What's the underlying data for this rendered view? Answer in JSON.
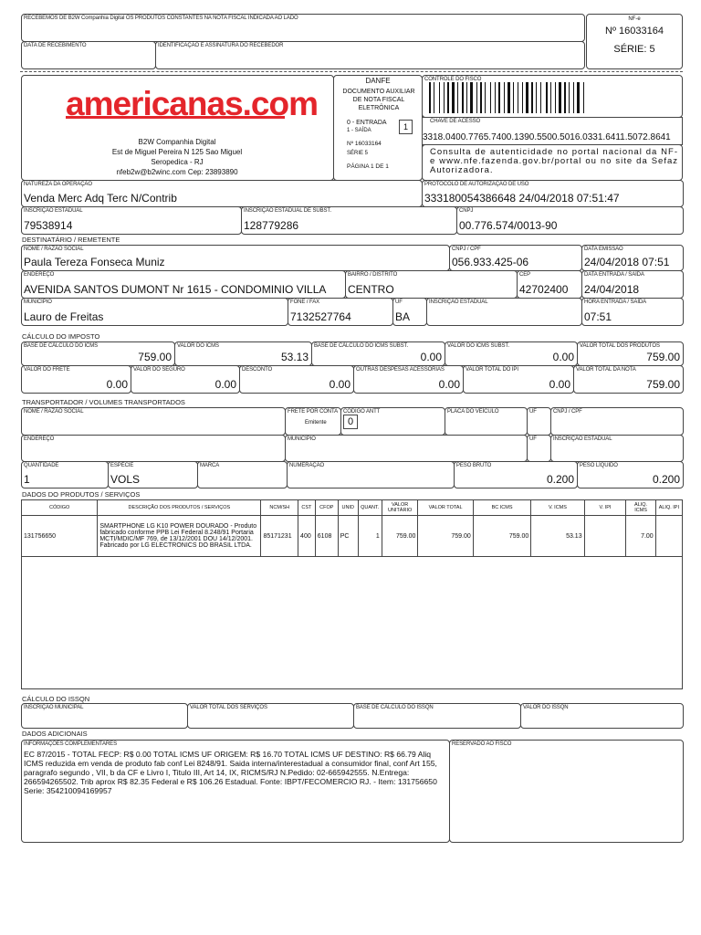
{
  "receipt": {
    "statement": "RECEBEMOS DE B2W Companhia Digital OS PRODUTOS CONSTANTES NA NOTA FISCAL INDICADA AO LADO",
    "date_label": "DATA DE RECEBIMENTO",
    "signature_label": "IDENTIFICAÇÃO E ASSINATURA DO RECEBEDOR",
    "nfe_label": "NF-e",
    "number": "Nº 16033164",
    "serie": "SÉRIE: 5"
  },
  "emitter": {
    "logo": "americanas.com",
    "logo_color": "#e4252b",
    "name": "B2W Companhia Digital",
    "address": "Est de Miguel Pereira N 125  Sao Miguel",
    "city": "Seropedica - RJ",
    "contact": "nfeb2w@b2winc.com Cep: 23893890"
  },
  "danfe": {
    "title": "DANFE",
    "subtitle": "DOCUMENTO AUXILIAR DE NOTA FISCAL ELETRÔNICA",
    "entrada": "0 - ENTRADA",
    "saida": "1 - SAÍDA",
    "type_value": "1",
    "number": "Nº 16033164",
    "serie": "SÉRIE 5",
    "page": "PÁGINA 1 DE 1"
  },
  "fisco": {
    "control_label": "CONTROLE DO FISCO",
    "key_label": "CHAVE DE ACESSO",
    "key": "3318.0400.7765.7400.1390.5500.5016.0331.6411.5072.8641",
    "consult": "Consulta de autenticidade no portal nacional da NF-e www.nfe.fazenda.gov.br/portal ou no site da Sefaz Autorizadora."
  },
  "fields": {
    "natureza": {
      "label": "NATUREZA DA OPERAÇÃO",
      "value": "Venda Merc Adq Terc N/Contrib"
    },
    "protocolo": {
      "label": "PROTOCOLO DE AUTORIZAÇÃO DE USO",
      "value": "333180054386648 24/04/2018 07:51:47"
    },
    "ie": {
      "label": "INSCRIÇÃO ESTADUAL",
      "value": "79538914"
    },
    "ie_subst": {
      "label": "INSCRIÇÃO ESTADUAL DE SUBST.",
      "value": "128779286"
    },
    "cnpj": {
      "label": "CNPJ",
      "value": "00.776.574/0013-90"
    },
    "dest_nome": {
      "label": "NOME / RAZÃO SOCIAL",
      "value": "Paula Tereza Fonseca Muniz"
    },
    "dest_cpf": {
      "label": "CNPJ / CPF",
      "value": "056.933.425-06"
    },
    "dest_emissao": {
      "label": "DATA EMISSÃO",
      "value": "24/04/2018  07:51"
    },
    "dest_endereco": {
      "label": "ENDEREÇO",
      "value": "AVENIDA SANTOS DUMONT Nr 1615 - CONDOMINIO VILLA"
    },
    "dest_bairro": {
      "label": "BAIRRO / DISTRITO",
      "value": "CENTRO"
    },
    "dest_cep": {
      "label": "CEP",
      "value": "42702400"
    },
    "dest_saida": {
      "label": "DATA ENTRADA / SAÍDA",
      "value": "24/04/2018"
    },
    "dest_municipio": {
      "label": "MUNICÍPIO",
      "value": "Lauro de Freitas"
    },
    "dest_fone": {
      "label": "FONE / FAX",
      "value": "7132527764"
    },
    "dest_uf": {
      "label": "UF",
      "value": "BA"
    },
    "dest_ie": {
      "label": "INSCRIÇÃO ESTADUAL",
      "value": ""
    },
    "dest_hora": {
      "label": "HORA ENTRADA / SAÍDA",
      "value": "07:51"
    },
    "bc_icms": {
      "label": "BASE DE CÁLCULO DO ICMS",
      "value": "759.00"
    },
    "v_icms": {
      "label": "VALOR DO ICMS",
      "value": "53.13"
    },
    "bc_icms_st": {
      "label": "BASE DE CÁLCULO DO ICMS SUBST.",
      "value": "0.00"
    },
    "v_icms_st": {
      "label": "VALOR DO ICMS SUBST.",
      "value": "0.00"
    },
    "v_prod": {
      "label": "VALOR TOTAL DOS PRODUTOS",
      "value": "759.00"
    },
    "v_frete": {
      "label": "VALOR DO FRETE",
      "value": "0.00"
    },
    "v_seguro": {
      "label": "VALOR DO SEGURO",
      "value": "0.00"
    },
    "desconto": {
      "label": "DESCONTO",
      "value": "0.00"
    },
    "outras": {
      "label": "OUTRAS DESPESAS ACESSÓRIAS",
      "value": "0.00"
    },
    "v_ipi": {
      "label": "VALOR TOTAL DO IPI",
      "value": "0.00"
    },
    "v_nota": {
      "label": "VALOR TOTAL DA NOTA",
      "value": "759.00"
    },
    "t_nome": {
      "label": "NOME / RAZÃO SOCIAL",
      "value": ""
    },
    "t_frete": {
      "label": "FRETE POR CONTA",
      "value": ""
    },
    "t_antt": {
      "label": "CÓDIGO ANTT",
      "value": ""
    },
    "t_placa": {
      "label": "PLACA DO VEÍCULO",
      "value": ""
    },
    "t_uf": {
      "label": "UF",
      "value": ""
    },
    "t_cnpj": {
      "label": "CNPJ / CPF",
      "value": ""
    },
    "t_endereco": {
      "label": "ENDEREÇO",
      "value": ""
    },
    "t_municipio": {
      "label": "MUNICÍPIO",
      "value": ""
    },
    "t_uf2": {
      "label": "UF",
      "value": ""
    },
    "t_ie": {
      "label": "INSCRIÇÃO ESTADUAL",
      "value": ""
    },
    "t_qtd": {
      "label": "QUANTIDADE",
      "value": "1"
    },
    "t_especie": {
      "label": "ESPÉCIE",
      "value": "VOLS"
    },
    "t_marca": {
      "label": "MARCA",
      "value": ""
    },
    "t_numeracao": {
      "label": "NUMERAÇÃO",
      "value": ""
    },
    "t_bruto": {
      "label": "PESO BRUTO",
      "value": "0.200"
    },
    "t_liquido": {
      "label": "PESO LÍQUIDO",
      "value": "0.200"
    },
    "iss_im": {
      "label": "INSCRIÇÃO MUNICIPAL",
      "value": ""
    },
    "iss_vs": {
      "label": "VALOR TOTAL DOS SERVIÇOS",
      "value": ""
    },
    "iss_bc": {
      "label": "BASE DE CÁLCULO DO ISSQN",
      "value": ""
    },
    "iss_v": {
      "label": "VALOR DO ISSQN",
      "value": ""
    },
    "info": {
      "label": "INFORMAÇÕES COMPLEMENTARES",
      "value": "EC 87/2015 - TOTAL FECP: R$ 0.00 TOTAL ICMS UF ORIGEM: R$ 16.70 TOTAL ICMS UF DESTINO: R$ 66.79 Aliq ICMS reduzida em venda de produto fab conf Lei 8248/91. Saida interna/interestadual a consumidor final, conf Art 155, paragrafo segundo , VII, b da CF e Livro I, Titulo III, Art 14, IX, RICMS/RJ N.Pedido: 02-665942555. N.Entrega: 266594265502. Trib aprox R$ 82.35 Federal e R$ 106.26 Estadual. Fonte: IBPT/FECOMERCIO RJ. - Item: 131756650 Serie: 354210094169957"
    },
    "reservado": {
      "label": "RESERVADO AO FISCO",
      "value": ""
    }
  },
  "transport": {
    "frete_text": "Emitente",
    "frete_code": "0"
  },
  "sections": {
    "destinatario": "DESTINATÁRIO / REMETENTE",
    "calculo": "CÁLCULO DO IMPOSTO",
    "transportador": "TRANSPORTADOR / VOLUMES TRANSPORTADOS",
    "produtos": "DADOS DO PRODUTOS / SERVIÇOS",
    "issqn": "CÁLCULO DO ISSQN",
    "adicionais": "DADOS ADICIONAIS"
  },
  "products": {
    "columns": [
      "CÓDIGO",
      "DESCRIÇÃO DOS PRODUTOS / SERVIÇOS",
      "NCM/SH",
      "CST",
      "CFOP",
      "UNID",
      "QUANT.",
      "VALOR UNITÁRIO",
      "VALOR TOTAL",
      "BC ICMS",
      "V. ICMS",
      "V. IPI",
      "ALIQ. ICMS",
      "ALIQ. IPI"
    ],
    "rows": [
      [
        "131756650",
        "SMARTPHONE LG K10 POWER DOURADO - Produto fabricado conforme PPB Lei Federal 8.248/91 Portaria MCTI/MDIC/MF 769, de 13/12/2001 DOU 14/12/2001. Fabricado por LG ELECTRONICS DO BRASIL LTDA.",
        "85171231",
        "400",
        "6108",
        "PC",
        "1",
        "759.00",
        "759.00",
        "759.00",
        "53.13",
        "",
        "7.00",
        ""
      ]
    ]
  }
}
